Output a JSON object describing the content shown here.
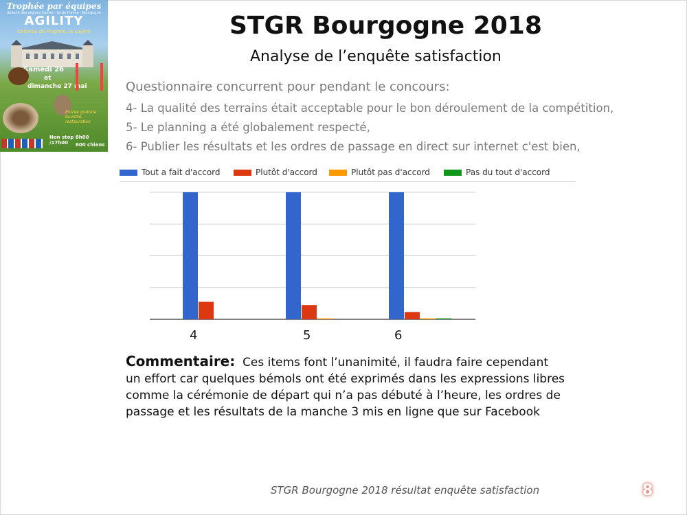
{
  "poster": {
    "title": "Trophée par équipes",
    "subtitle": "Sélectif des régions Centre - Ile de France - Bourgogne",
    "headline": "AGILITY",
    "venue": "Château de Fragnes, la Loyère",
    "date1": "Samedi 26",
    "date_et": "et",
    "date2": "dimanche 27 mai",
    "entry": "Entrée gratuite buvette, restauration",
    "hours": "Non stop 8h00 /17h00",
    "count": "600 chiens"
  },
  "header": {
    "title": "STGR Bourgogne 2018",
    "subtitle": "Analyse de l’enquête satisfaction"
  },
  "questions": {
    "heading": "Questionnaire concurrent pour pendant le concours:",
    "items": [
      "4- La qualité des terrains était acceptable pour le bon déroulement de la compétition,",
      "5- Le planning a été globalement respecté,",
      "6- Publier les résultats et les ordres de passage en direct sur internet c'est bien,"
    ]
  },
  "chart_data": {
    "type": "bar",
    "categories": [
      "4",
      "5",
      "6"
    ],
    "series": [
      {
        "name": "Tout a fait d'accord",
        "color": "#3366cc",
        "values": [
          40,
          40,
          40
        ]
      },
      {
        "name": "Plutôt d'accord",
        "color": "#dc3912",
        "values": [
          5.5,
          4.5,
          2.3
        ]
      },
      {
        "name": "Plutôt pas d'accord",
        "color": "#ff9900",
        "values": [
          0,
          0.3,
          0.3
        ]
      },
      {
        "name": "Pas du tout d'accord",
        "color": "#109618",
        "values": [
          0,
          0,
          0.3
        ]
      }
    ],
    "ylim": [
      0,
      40
    ],
    "grid": true,
    "legend": "top",
    "title": "",
    "xlabel": "",
    "ylabel": ""
  },
  "comment": {
    "label": "Commentaire:",
    "text": "Ces items font l’unanimité, il faudra faire cependant un effort car quelques bémols ont été exprimés dans les expressions libres comme la cérémonie de départ qui n’a pas débuté à l’heure, les ordres de passage et les résultats de la manche 3 mis en ligne que sur Facebook"
  },
  "footer": {
    "text": "STGR Bourgogne 2018 résultat enquête satisfaction",
    "page_number": "8"
  }
}
